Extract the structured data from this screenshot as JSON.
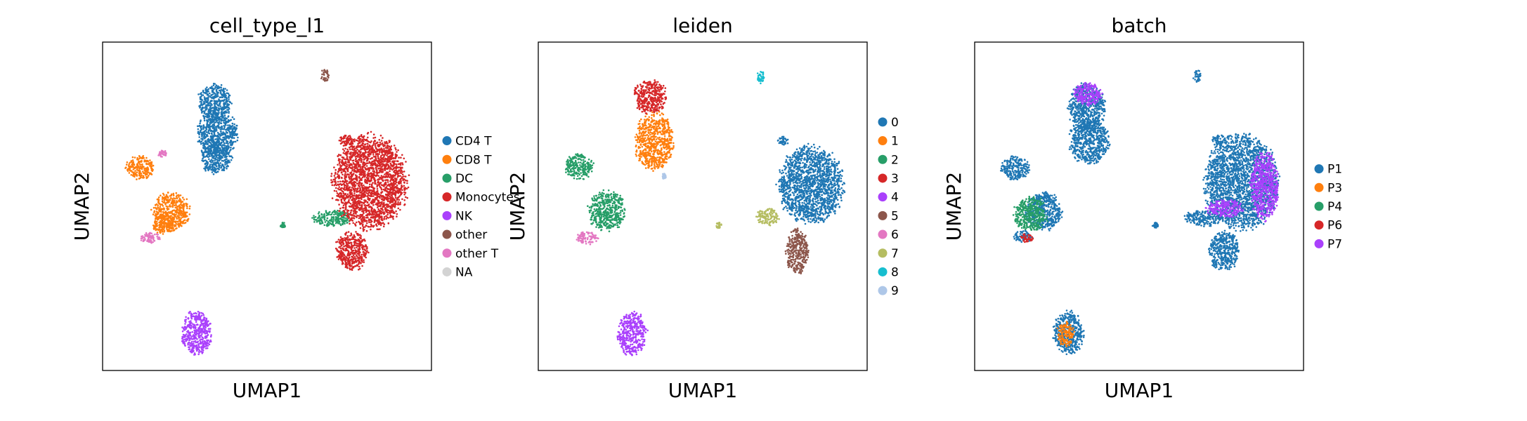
{
  "chart_data": [
    {
      "type": "scatter",
      "title": "cell_type_l1",
      "xlabel": "UMAP1",
      "ylabel": "UMAP2",
      "legend": {
        "placement": "right",
        "entries": [
          {
            "label": "CD4 T",
            "color": "#1f77b4"
          },
          {
            "label": "CD8 T",
            "color": "#ff7f0e"
          },
          {
            "label": "DC",
            "color": "#279e68"
          },
          {
            "label": "Monocytes",
            "color": "#d62728"
          },
          {
            "label": "NK",
            "color": "#aa40fc"
          },
          {
            "label": "other",
            "color": "#8c564b"
          },
          {
            "label": "other T",
            "color": "#e377c2"
          },
          {
            "label": "NA",
            "color": "#d3d3d3"
          }
        ]
      },
      "clusters": [
        {
          "label": "CD4 T",
          "shapes": [
            [
              -7.5,
              7.2,
              1.15,
              1.3
            ],
            [
              -7.3,
              5.0,
              1.4,
              1.7
            ],
            [
              -7.4,
              3.2,
              1.1,
              1.1
            ]
          ]
        },
        {
          "label": "CD8 T",
          "shapes": [
            [
              -12.8,
              2.5,
              1.0,
              0.85
            ],
            [
              -10.6,
              -0.6,
              1.3,
              1.35
            ],
            [
              -11.1,
              -1.5,
              0.9,
              0.7
            ]
          ]
        },
        {
          "label": "DC",
          "shapes": [
            [
              0.9,
              -1.1,
              1.4,
              0.55
            ],
            [
              -2.6,
              -1.6,
              0.2,
              0.2
            ]
          ]
        },
        {
          "label": "Monocytes",
          "shapes": [
            [
              3.6,
              1.5,
              2.6,
              3.3
            ],
            [
              2.3,
              -3.4,
              1.1,
              1.4
            ],
            [
              1.9,
              4.5,
              0.55,
              0.4
            ]
          ]
        },
        {
          "label": "NK",
          "shapes": [
            [
              -8.8,
              -9.3,
              1.05,
              1.55
            ]
          ]
        },
        {
          "label": "other",
          "shapes": [
            [
              0.4,
              9.1,
              0.3,
              0.45
            ]
          ]
        },
        {
          "label": "other T",
          "shapes": [
            [
              -12.1,
              -2.5,
              0.7,
              0.4
            ],
            [
              -11.2,
              3.5,
              0.3,
              0.25
            ]
          ]
        }
      ]
    },
    {
      "type": "scatter",
      "title": "leiden",
      "xlabel": "UMAP1",
      "ylabel": "UMAP2",
      "legend": {
        "placement": "right",
        "entries": [
          {
            "label": "0",
            "color": "#1f77b4"
          },
          {
            "label": "1",
            "color": "#ff7f0e"
          },
          {
            "label": "2",
            "color": "#279e68"
          },
          {
            "label": "3",
            "color": "#d62728"
          },
          {
            "label": "4",
            "color": "#aa40fc"
          },
          {
            "label": "5",
            "color": "#8c564b"
          },
          {
            "label": "6",
            "color": "#e377c2"
          },
          {
            "label": "7",
            "color": "#b5bd61"
          },
          {
            "label": "8",
            "color": "#17becf"
          },
          {
            "label": "9",
            "color": "#aec7e8"
          }
        ]
      },
      "clusters": [
        {
          "label": "0",
          "shapes": [
            [
              4.0,
              1.3,
              2.3,
              2.7
            ],
            [
              2.0,
              4.4,
              0.4,
              0.35
            ]
          ]
        },
        {
          "label": "1",
          "shapes": [
            [
              -7.2,
              4.4,
              1.35,
              2.0
            ]
          ]
        },
        {
          "label": "2",
          "shapes": [
            [
              -12.6,
              2.6,
              1.0,
              0.9
            ],
            [
              -10.6,
              -0.6,
              1.3,
              1.4
            ]
          ]
        },
        {
          "label": "3",
          "shapes": [
            [
              -7.5,
              7.6,
              1.2,
              1.2
            ]
          ]
        },
        {
          "label": "4",
          "shapes": [
            [
              -8.8,
              -9.3,
              1.05,
              1.55
            ]
          ]
        },
        {
          "label": "5",
          "shapes": [
            [
              3.0,
              -3.5,
              0.8,
              1.6
            ]
          ]
        },
        {
          "label": "6",
          "shapes": [
            [
              -12.0,
              -2.5,
              0.75,
              0.45
            ]
          ]
        },
        {
          "label": "7",
          "shapes": [
            [
              0.9,
              -1.0,
              0.8,
              0.6
            ],
            [
              -2.6,
              -1.6,
              0.2,
              0.2
            ]
          ]
        },
        {
          "label": "8",
          "shapes": [
            [
              0.4,
              9.0,
              0.3,
              0.45
            ]
          ]
        },
        {
          "label": "9",
          "shapes": [
            [
              -6.5,
              1.9,
              0.15,
              0.2
            ]
          ]
        }
      ]
    },
    {
      "type": "scatter",
      "title": "batch",
      "xlabel": "UMAP1",
      "ylabel": "UMAP2",
      "legend": {
        "placement": "right",
        "entries": [
          {
            "label": "P1",
            "color": "#1f77b4"
          },
          {
            "label": "P3",
            "color": "#ff7f0e"
          },
          {
            "label": "P4",
            "color": "#279e68"
          },
          {
            "label": "P6",
            "color": "#d62728"
          },
          {
            "label": "P7",
            "color": "#aa40fc"
          }
        ]
      },
      "clusters": [
        {
          "label": "P1",
          "shapes": [
            [
              -7.5,
              6.8,
              1.3,
              1.7
            ],
            [
              -7.3,
              4.4,
              1.4,
              1.6
            ],
            [
              -12.6,
              2.5,
              1.0,
              0.85
            ],
            [
              -10.6,
              -0.6,
              1.3,
              1.35
            ],
            [
              -12.0,
              -2.4,
              0.7,
              0.4
            ],
            [
              -8.8,
              -9.3,
              1.05,
              1.55
            ],
            [
              3.6,
              1.5,
              2.6,
              3.3
            ],
            [
              2.3,
              -3.4,
              1.1,
              1.4
            ],
            [
              0.9,
              -1.1,
              1.4,
              0.55
            ],
            [
              -2.6,
              -1.6,
              0.2,
              0.2
            ],
            [
              0.4,
              9.1,
              0.3,
              0.45
            ],
            [
              1.9,
              4.5,
              0.5,
              0.4
            ]
          ]
        },
        {
          "label": "P3",
          "shapes": [
            [
              -9.0,
              -9.4,
              0.6,
              0.9
            ]
          ]
        },
        {
          "label": "P4",
          "shapes": [
            [
              -11.5,
              -0.8,
              1.2,
              1.2
            ]
          ]
        },
        {
          "label": "P6",
          "shapes": [
            [
              -11.8,
              -2.5,
              0.5,
              0.3
            ]
          ]
        },
        {
          "label": "P7",
          "shapes": [
            [
              5.2,
              1.2,
              1.0,
              2.4
            ],
            [
              2.4,
              -0.4,
              1.3,
              0.6
            ],
            [
              -7.4,
              7.8,
              1.0,
              0.8
            ]
          ]
        }
      ]
    }
  ]
}
